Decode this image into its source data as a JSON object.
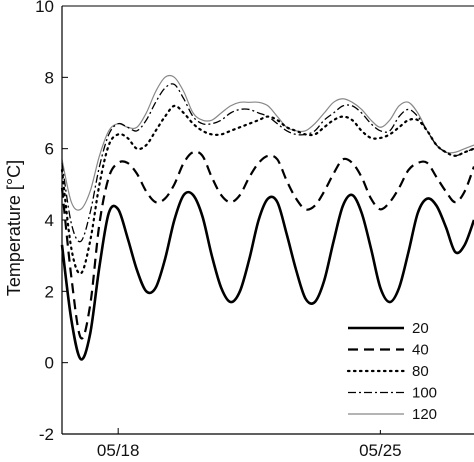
{
  "chart_data": {
    "type": "line",
    "title": "",
    "xlabel": "",
    "ylabel": "Temperature  [°C]",
    "xlim": [
      "2015-05-16T12:00",
      "2015-05-27T12:00"
    ],
    "ylim": [
      -2,
      10
    ],
    "x_ticks": [
      {
        "value": "2015-05-18",
        "label": "05/18"
      },
      {
        "value": "2015-05-25",
        "label": "05/25"
      }
    ],
    "y_ticks": [
      -2,
      0,
      2,
      4,
      6,
      8,
      10
    ],
    "grid": false,
    "legend_position": "bottom-right",
    "x": [
      "2015-05-16T12:00",
      "2015-05-16T18:00",
      "2015-05-17T00:00",
      "2015-05-17T06:00",
      "2015-05-17T12:00",
      "2015-05-17T18:00",
      "2015-05-18T00:00",
      "2015-05-18T06:00",
      "2015-05-18T12:00",
      "2015-05-18T18:00",
      "2015-05-19T00:00",
      "2015-05-19T06:00",
      "2015-05-19T12:00",
      "2015-05-19T18:00",
      "2015-05-20T00:00",
      "2015-05-20T06:00",
      "2015-05-20T12:00",
      "2015-05-20T18:00",
      "2015-05-21T00:00",
      "2015-05-21T06:00",
      "2015-05-21T12:00",
      "2015-05-21T18:00",
      "2015-05-22T00:00",
      "2015-05-22T06:00",
      "2015-05-22T12:00",
      "2015-05-22T18:00",
      "2015-05-23T00:00",
      "2015-05-23T06:00",
      "2015-05-23T12:00",
      "2015-05-23T18:00",
      "2015-05-24T00:00",
      "2015-05-24T06:00",
      "2015-05-24T12:00",
      "2015-05-24T18:00",
      "2015-05-25T00:00",
      "2015-05-25T06:00",
      "2015-05-25T12:00",
      "2015-05-25T18:00",
      "2015-05-26T00:00",
      "2015-05-26T06:00",
      "2015-05-26T12:00",
      "2015-05-26T18:00",
      "2015-05-27T00:00",
      "2015-05-27T06:00",
      "2015-05-27T12:00"
    ],
    "series": [
      {
        "name": "20",
        "style": "solid-thick",
        "color": "#000000",
        "values": [
          3.3,
          1.2,
          0.1,
          0.8,
          2.7,
          4.2,
          4.3,
          3.5,
          2.6,
          2.0,
          2.1,
          2.9,
          4.0,
          4.7,
          4.7,
          4.1,
          3.0,
          2.1,
          1.7,
          2.0,
          2.9,
          4.0,
          4.6,
          4.5,
          3.6,
          2.6,
          1.8,
          1.7,
          2.3,
          3.4,
          4.4,
          4.7,
          4.2,
          3.2,
          2.1,
          1.7,
          2.1,
          3.1,
          4.2,
          4.6,
          4.4,
          3.8,
          3.1,
          3.3,
          4.0
        ]
      },
      {
        "name": "40",
        "style": "dashed",
        "color": "#000000",
        "values": [
          4.9,
          2.4,
          0.7,
          1.6,
          3.9,
          5.2,
          5.6,
          5.6,
          5.3,
          4.8,
          4.5,
          4.6,
          5.0,
          5.6,
          5.9,
          5.8,
          5.2,
          4.7,
          4.5,
          4.7,
          5.2,
          5.6,
          5.8,
          5.7,
          5.1,
          4.6,
          4.3,
          4.4,
          4.8,
          5.3,
          5.7,
          5.6,
          5.2,
          4.6,
          4.3,
          4.5,
          4.9,
          5.4,
          5.6,
          5.6,
          5.2,
          4.8,
          4.5,
          4.8,
          5.5
        ]
      },
      {
        "name": "80",
        "style": "dotted",
        "color": "#000000",
        "values": [
          5.4,
          3.2,
          2.5,
          3.4,
          5.0,
          6.1,
          6.4,
          6.3,
          6.0,
          6.1,
          6.5,
          6.9,
          7.2,
          7.0,
          6.7,
          6.5,
          6.4,
          6.4,
          6.5,
          6.6,
          6.7,
          6.8,
          6.9,
          6.8,
          6.6,
          6.5,
          6.4,
          6.4,
          6.6,
          6.8,
          6.9,
          6.8,
          6.5,
          6.3,
          6.3,
          6.4,
          6.6,
          6.8,
          6.8,
          6.5,
          6.1,
          5.9,
          5.8,
          5.9,
          6.0
        ]
      },
      {
        "name": "100",
        "style": "dashdot",
        "color": "#000000",
        "values": [
          5.6,
          3.9,
          3.4,
          4.2,
          5.5,
          6.4,
          6.7,
          6.6,
          6.5,
          6.8,
          7.3,
          7.7,
          7.8,
          7.4,
          6.9,
          6.7,
          6.7,
          6.8,
          7.0,
          7.1,
          7.1,
          7.0,
          6.9,
          6.7,
          6.5,
          6.4,
          6.4,
          6.5,
          6.8,
          7.0,
          7.2,
          7.2,
          7.0,
          6.7,
          6.5,
          6.5,
          6.9,
          7.1,
          6.9,
          6.5,
          6.1,
          5.9,
          5.8,
          5.9,
          6.0
        ]
      },
      {
        "name": "120",
        "style": "solid-thin",
        "color": "#888888",
        "values": [
          5.7,
          4.5,
          4.3,
          4.8,
          5.8,
          6.5,
          6.7,
          6.6,
          6.6,
          7.0,
          7.6,
          8.0,
          8.0,
          7.6,
          7.0,
          6.8,
          6.8,
          7.0,
          7.2,
          7.3,
          7.3,
          7.3,
          7.2,
          6.9,
          6.6,
          6.5,
          6.5,
          6.7,
          7.0,
          7.3,
          7.4,
          7.3,
          7.1,
          6.8,
          6.6,
          6.8,
          7.2,
          7.3,
          7.0,
          6.5,
          6.1,
          5.9,
          5.9,
          6.0,
          6.1
        ]
      }
    ]
  }
}
